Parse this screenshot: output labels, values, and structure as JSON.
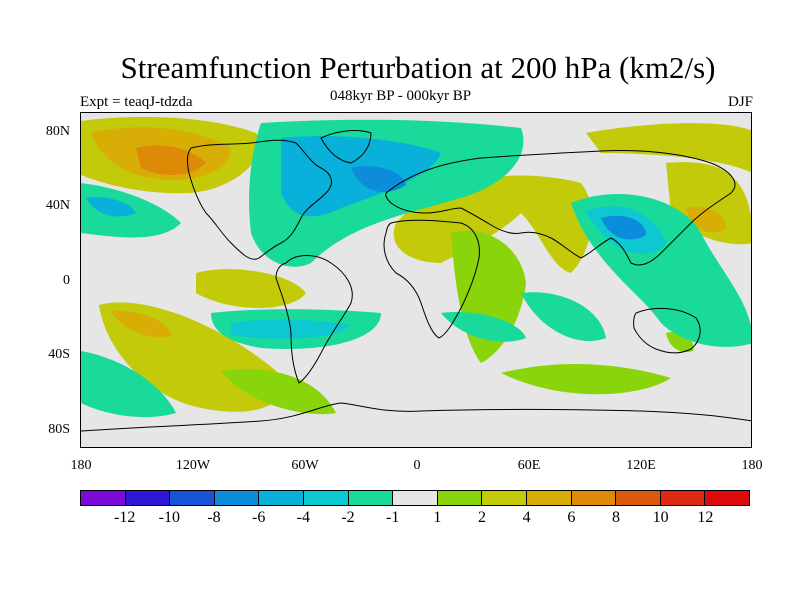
{
  "title": "Streamfunction Perturbation at 200 hPa (km2/s)",
  "subtitle": "048kyr BP - 000kyr BP",
  "expt_label": "Expt = teaqJ-tdzda",
  "season": "DJF",
  "lat_labels": [
    "80N",
    "40N",
    "0",
    "40S",
    "80S"
  ],
  "lon_labels": [
    "180",
    "120W",
    "60W",
    "0",
    "60E",
    "120E",
    "180"
  ],
  "colorbar": {
    "colors": [
      "#7a0bd9",
      "#2d16d6",
      "#1853d6",
      "#0c8ddc",
      "#09b0d9",
      "#0dc8d0",
      "#19da9a",
      "#e6e6e6",
      "#8ad40c",
      "#c2ca0a",
      "#d8ae06",
      "#dc8a08",
      "#dc5a0c",
      "#dc2a14",
      "#dc0a0a"
    ],
    "tick_labels": [
      "-12",
      "-10",
      "-8",
      "-6",
      "-4",
      "-2",
      "-1",
      "1",
      "2",
      "4",
      "6",
      "8",
      "10",
      "12"
    ]
  },
  "colors": {
    "neutral": "#e6e6e6",
    "coastline": "#000000"
  }
}
